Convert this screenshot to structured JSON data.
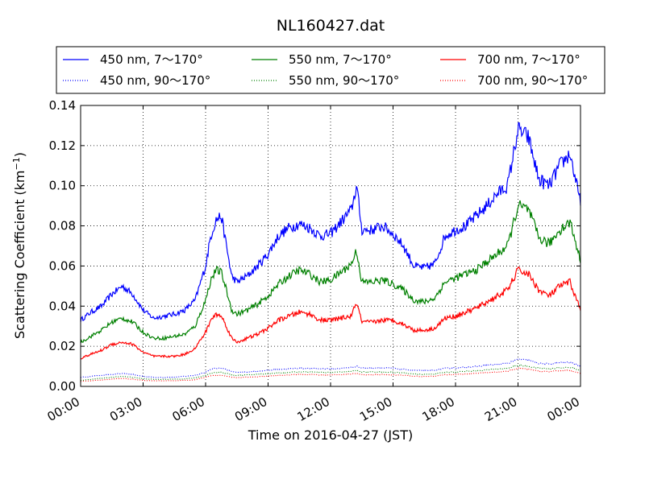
{
  "chart_data": {
    "type": "line",
    "title": "NL160427.dat",
    "xlabel": "Time on 2016-04-27 (JST)",
    "ylabel_text": "Scattering Coefficient (km",
    "ylabel_sup": "−1",
    "ylabel_close": ")",
    "xlim": [
      "2016-04-27T00:00",
      "2016-04-28T00:00"
    ],
    "ylim": [
      0,
      0.14
    ],
    "grid": true,
    "legend_position": "top, above plot",
    "xticks": [
      {
        "t": 0,
        "label": "00:00"
      },
      {
        "t": 3,
        "label": "03:00"
      },
      {
        "t": 6,
        "label": "06:00"
      },
      {
        "t": 9,
        "label": "09:00"
      },
      {
        "t": 12,
        "label": "12:00"
      },
      {
        "t": 15,
        "label": "15:00"
      },
      {
        "t": 18,
        "label": "18:00"
      },
      {
        "t": 21,
        "label": "21:00"
      },
      {
        "t": 24,
        "label": "00:00"
      }
    ],
    "yticks": [
      {
        "v": 0.0,
        "label": "0.00"
      },
      {
        "v": 0.02,
        "label": "0.02"
      },
      {
        "v": 0.04,
        "label": "0.04"
      },
      {
        "v": 0.06,
        "label": "0.06"
      },
      {
        "v": 0.08,
        "label": "0.08"
      },
      {
        "v": 0.1,
        "label": "0.10"
      },
      {
        "v": 0.12,
        "label": "0.12"
      },
      {
        "v": 0.14,
        "label": "0.14"
      }
    ],
    "x_hours": [
      0,
      0.5,
      1,
      1.5,
      2,
      2.5,
      3,
      3.5,
      4,
      4.5,
      5,
      5.5,
      6,
      6.25,
      6.5,
      6.75,
      7,
      7.25,
      7.5,
      8,
      8.5,
      9,
      9.5,
      10,
      10.5,
      11,
      11.5,
      12,
      12.5,
      13,
      13.25,
      13.5,
      14,
      14.5,
      15,
      15.5,
      16,
      16.5,
      17,
      17.5,
      18,
      18.5,
      19,
      19.5,
      20,
      20.5,
      21,
      21.5,
      22,
      22.5,
      23,
      23.5,
      24
    ],
    "series": [
      {
        "name": "450 nm, 7～170°",
        "color": "#0000ff",
        "style": "solid",
        "values": [
          0.033,
          0.037,
          0.04,
          0.046,
          0.05,
          0.046,
          0.038,
          0.034,
          0.035,
          0.036,
          0.038,
          0.043,
          0.06,
          0.075,
          0.083,
          0.085,
          0.07,
          0.055,
          0.052,
          0.055,
          0.06,
          0.066,
          0.075,
          0.079,
          0.081,
          0.079,
          0.075,
          0.076,
          0.082,
          0.088,
          0.1,
          0.078,
          0.078,
          0.08,
          0.076,
          0.07,
          0.06,
          0.059,
          0.061,
          0.075,
          0.078,
          0.08,
          0.085,
          0.09,
          0.096,
          0.1,
          0.128,
          0.124,
          0.103,
          0.1,
          0.11,
          0.116,
          0.091
        ]
      },
      {
        "name": "450 nm, 90～170°",
        "color": "#0000ff",
        "style": "dotted",
        "values": [
          0.0045,
          0.005,
          0.0055,
          0.006,
          0.0065,
          0.006,
          0.005,
          0.0045,
          0.0045,
          0.0047,
          0.005,
          0.0055,
          0.007,
          0.0085,
          0.009,
          0.009,
          0.0085,
          0.0075,
          0.007,
          0.0072,
          0.0075,
          0.008,
          0.0085,
          0.0088,
          0.009,
          0.009,
          0.0088,
          0.0088,
          0.009,
          0.0095,
          0.01,
          0.0092,
          0.0092,
          0.0092,
          0.009,
          0.0085,
          0.008,
          0.0078,
          0.008,
          0.009,
          0.0092,
          0.0095,
          0.01,
          0.0105,
          0.011,
          0.0115,
          0.0135,
          0.013,
          0.0115,
          0.0112,
          0.0118,
          0.012,
          0.01
        ]
      },
      {
        "name": "550 nm, 7～170°",
        "color": "#008000",
        "style": "solid",
        "values": [
          0.022,
          0.025,
          0.028,
          0.032,
          0.034,
          0.032,
          0.027,
          0.024,
          0.024,
          0.025,
          0.026,
          0.03,
          0.043,
          0.053,
          0.058,
          0.057,
          0.048,
          0.038,
          0.036,
          0.038,
          0.041,
          0.045,
          0.051,
          0.055,
          0.058,
          0.056,
          0.052,
          0.053,
          0.057,
          0.061,
          0.068,
          0.052,
          0.052,
          0.053,
          0.051,
          0.048,
          0.043,
          0.042,
          0.044,
          0.052,
          0.054,
          0.056,
          0.058,
          0.062,
          0.066,
          0.07,
          0.09,
          0.088,
          0.074,
          0.071,
          0.078,
          0.082,
          0.063
        ]
      },
      {
        "name": "550 nm, 90～170°",
        "color": "#008000",
        "style": "dotted",
        "values": [
          0.003,
          0.0035,
          0.004,
          0.0045,
          0.005,
          0.0045,
          0.0038,
          0.0035,
          0.0035,
          0.0036,
          0.0038,
          0.0042,
          0.0055,
          0.0065,
          0.007,
          0.007,
          0.0065,
          0.0058,
          0.0055,
          0.0057,
          0.006,
          0.0063,
          0.0067,
          0.007,
          0.0072,
          0.0072,
          0.007,
          0.007,
          0.0072,
          0.0075,
          0.008,
          0.0072,
          0.0072,
          0.0072,
          0.007,
          0.0067,
          0.0062,
          0.006,
          0.0062,
          0.007,
          0.0072,
          0.0075,
          0.0078,
          0.0082,
          0.0086,
          0.009,
          0.0105,
          0.01,
          0.009,
          0.0088,
          0.0092,
          0.0095,
          0.008
        ]
      },
      {
        "name": "700 nm, 7～170°",
        "color": "#ff0000",
        "style": "solid",
        "values": [
          0.014,
          0.016,
          0.018,
          0.021,
          0.022,
          0.021,
          0.017,
          0.015,
          0.015,
          0.015,
          0.016,
          0.019,
          0.027,
          0.033,
          0.036,
          0.035,
          0.03,
          0.024,
          0.022,
          0.024,
          0.026,
          0.029,
          0.033,
          0.035,
          0.037,
          0.036,
          0.033,
          0.033,
          0.034,
          0.035,
          0.042,
          0.032,
          0.032,
          0.033,
          0.033,
          0.031,
          0.028,
          0.028,
          0.029,
          0.034,
          0.035,
          0.037,
          0.039,
          0.042,
          0.045,
          0.048,
          0.058,
          0.056,
          0.048,
          0.045,
          0.05,
          0.052,
          0.038
        ]
      },
      {
        "name": "700 nm, 90～170°",
        "color": "#ff0000",
        "style": "dotted",
        "values": [
          0.0025,
          0.0028,
          0.0032,
          0.0036,
          0.004,
          0.0036,
          0.003,
          0.0028,
          0.0028,
          0.0029,
          0.003,
          0.0033,
          0.0045,
          0.0052,
          0.0055,
          0.0055,
          0.0052,
          0.0046,
          0.0044,
          0.0046,
          0.0048,
          0.0051,
          0.0054,
          0.0057,
          0.0059,
          0.0059,
          0.0057,
          0.0057,
          0.0059,
          0.0061,
          0.0065,
          0.0058,
          0.0058,
          0.0059,
          0.0057,
          0.0055,
          0.0051,
          0.0049,
          0.0051,
          0.0058,
          0.006,
          0.0062,
          0.0065,
          0.0068,
          0.0072,
          0.0076,
          0.009,
          0.0086,
          0.0076,
          0.0074,
          0.0078,
          0.008,
          0.0065
        ]
      }
    ],
    "legend_order": [
      0,
      2,
      4,
      1,
      3,
      5
    ]
  }
}
